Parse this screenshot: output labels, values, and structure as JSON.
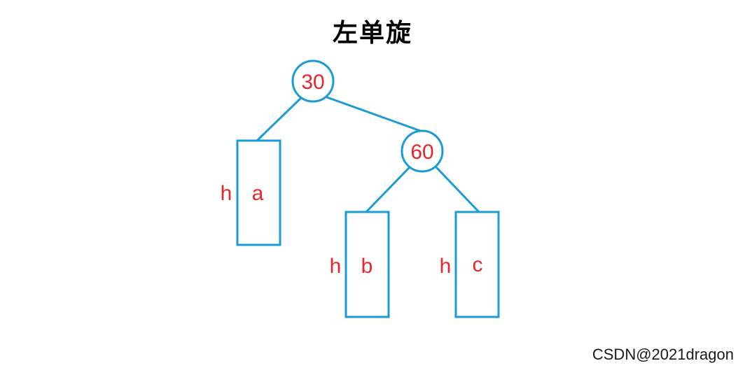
{
  "title": "左单旋",
  "colors": {
    "stroke": "#1a9bd7",
    "label": "#e8262a"
  },
  "nodes": {
    "root": "30",
    "right": "60"
  },
  "subtrees": {
    "a": {
      "name": "a",
      "height": "h"
    },
    "b": {
      "name": "b",
      "height": "h"
    },
    "c": {
      "name": "c",
      "height": "h"
    }
  },
  "watermark": "CSDN@2021dragon"
}
